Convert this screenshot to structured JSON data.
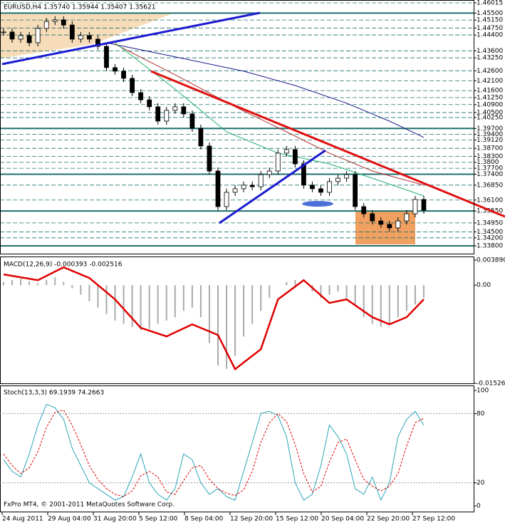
{
  "header": "EURUSD,H4  1.35740 1.35944 1.35407 1.35621",
  "footer": "FxPro MT4, © 2001-2011 MetaQuotes Software Corp.",
  "x_labels": [
    "24 Aug 2011",
    "29 Aug 04:00",
    "31 Aug 20:00",
    "5 Sep 12:00",
    "8 Sep 04:00",
    "12 Sep 20:00",
    "15 Sep 12:00",
    "20 Sep 04:00",
    "22 Sep 20:00",
    "27 Sep 12:00"
  ],
  "price": {
    "ylim": [
      1.3362,
      1.46015
    ],
    "yticks": [
      {
        "value": 1.46015,
        "label": "1.46015"
      },
      {
        "value": 1.455,
        "label": "1.45500"
      },
      {
        "value": 1.4515,
        "label": "1.45150"
      },
      {
        "value": 1.4475,
        "label": "1.44750"
      },
      {
        "value": 1.444,
        "label": "1.44400"
      },
      {
        "value": 1.436,
        "label": "1.43600"
      },
      {
        "value": 1.4325,
        "label": "1.43250"
      },
      {
        "value": 1.426,
        "label": "1.42600"
      },
      {
        "value": 1.421,
        "label": "1.42100"
      },
      {
        "value": 1.416,
        "label": "1.41600"
      },
      {
        "value": 1.4125,
        "label": "1.41250"
      },
      {
        "value": 1.409,
        "label": "1.40900"
      },
      {
        "value": 1.405,
        "label": "1.40500"
      },
      {
        "value": 1.4025,
        "label": "1.40250"
      },
      {
        "value": 1.397,
        "label": "1.39700"
      },
      {
        "value": 1.394,
        "label": "1.39400"
      },
      {
        "value": 1.3912,
        "label": "1.39120"
      },
      {
        "value": 1.387,
        "label": "1.38700"
      },
      {
        "value": 1.383,
        "label": "1.38300"
      },
      {
        "value": 1.38,
        "label": "1.3800"
      },
      {
        "value": 1.377,
        "label": "1.37700"
      },
      {
        "value": 1.374,
        "label": "1.37400"
      },
      {
        "value": 1.3685,
        "label": "1.36850"
      },
      {
        "value": 1.361,
        "label": "1.36100"
      },
      {
        "value": 1.3555,
        "label": "1.35550"
      },
      {
        "value": 1.3495,
        "label": "1.34950"
      },
      {
        "value": 1.345,
        "label": "1.34500"
      },
      {
        "value": 1.342,
        "label": "1.34200"
      },
      {
        "value": 1.338,
        "label": "1.33800"
      }
    ],
    "levels": [
      1.455,
      1.397,
      1.374,
      1.3555,
      1.338
    ],
    "closes": [
      1.4455,
      1.4419,
      1.4437,
      1.4401,
      1.4473,
      1.4508,
      1.4516,
      1.449,
      1.4419,
      1.4437,
      1.4419,
      1.4383,
      1.4276,
      1.4258,
      1.4222,
      1.415,
      1.4114,
      1.4079,
      1.4007,
      1.4061,
      1.4079,
      1.4043,
      1.3971,
      1.3882,
      1.3756,
      1.3577,
      1.3649,
      1.3667,
      1.3685,
      1.3677,
      1.3738,
      1.3756,
      1.3846,
      1.3864,
      1.3792,
      1.3685,
      1.3667,
      1.3649,
      1.3703,
      1.372,
      1.3738,
      1.3577,
      1.3541,
      1.3505,
      1.3488,
      1.347,
      1.3505,
      1.3541,
      1.3613,
      1.3559
    ],
    "ma": [
      {
        "color": "#1a1a8c",
        "x": [
          12,
          20,
          28,
          34,
          40,
          45,
          49
        ],
        "values": [
          1.4401,
          1.433,
          1.4258,
          1.4186,
          1.4097,
          1.4007,
          1.3925
        ]
      },
      {
        "color": "#b03030",
        "x": [
          13,
          20,
          27,
          33,
          38,
          43,
          49
        ],
        "values": [
          1.4394,
          1.424,
          1.4079,
          1.3953,
          1.3846,
          1.3756,
          1.3685
        ]
      },
      {
        "color": "#20b070",
        "x": [
          13,
          20,
          26,
          32,
          38,
          43,
          49
        ],
        "values": [
          1.4401,
          1.4168,
          1.3953,
          1.3846,
          1.3792,
          1.372,
          1.3631
        ]
      }
    ]
  },
  "macd": {
    "label": "MACD(12,26,9) -0.000393 -0.002516",
    "ylim": [
      -0.015261,
      0.00389
    ],
    "yticks": [
      {
        "value": 0.00389,
        "label": "0.003890"
      },
      {
        "value": 0,
        "label": "0.00"
      },
      {
        "value": -0.015261,
        "label": "-0.015261"
      }
    ],
    "histogram": [
      0.0005,
      0.0008,
      0.001,
      0.0006,
      0.0003,
      0.0008,
      0.0012,
      0.0005,
      -0.0005,
      -0.0015,
      -0.0025,
      -0.0035,
      -0.0045,
      -0.0055,
      -0.006,
      -0.0065,
      -0.007,
      -0.0068,
      -0.006,
      -0.0055,
      -0.005,
      -0.004,
      -0.0035,
      -0.005,
      -0.009,
      -0.0125,
      -0.013,
      -0.011,
      -0.008,
      -0.006,
      -0.004,
      -0.002,
      0,
      0.0005,
      0.0008,
      0,
      -0.001,
      -0.002,
      -0.0015,
      -0.001,
      -0.002,
      -0.003,
      -0.005,
      -0.006,
      -0.0065,
      -0.006,
      -0.005,
      -0.004,
      -0.003,
      -0.002
    ],
    "line": {
      "color": "#e00000",
      "x": [
        0,
        4,
        7,
        10,
        13,
        16,
        19,
        22,
        25,
        27,
        30,
        32,
        35,
        38,
        40,
        43,
        45,
        47,
        49
      ],
      "values": [
        0.00166,
        0.00077,
        0.00277,
        0.00111,
        -0.00221,
        -0.00664,
        -0.00797,
        -0.00609,
        -0.00775,
        -0.01306,
        -0.00996,
        -0.00221,
        0.00077,
        -0.00277,
        -0.00221,
        -0.00498,
        -0.00609,
        -0.00498,
        -0.00221
      ]
    }
  },
  "stoch": {
    "label": "Stoch(13,3,3) 69.1939 74.2663",
    "ylim": [
      0,
      100
    ],
    "yticks": [
      0,
      20,
      80,
      100
    ],
    "main": [
      40,
      30,
      25,
      45,
      70,
      88,
      85,
      75,
      50,
      35,
      20,
      15,
      10,
      5,
      8,
      25,
      45,
      20,
      10,
      5,
      15,
      45,
      40,
      20,
      10,
      15,
      8,
      5,
      30,
      55,
      80,
      82,
      78,
      60,
      20,
      5,
      10,
      35,
      70,
      60,
      45,
      15,
      10,
      25,
      5,
      20,
      60,
      75,
      82,
      70
    ],
    "signal": [
      45,
      35,
      28,
      33,
      47,
      68,
      81,
      83,
      70,
      53,
      35,
      23,
      15,
      10,
      8,
      13,
      26,
      30,
      25,
      12,
      10,
      22,
      33,
      35,
      23,
      15,
      11,
      9,
      14,
      30,
      55,
      72,
      80,
      73,
      53,
      28,
      12,
      17,
      38,
      55,
      58,
      40,
      23,
      17,
      13,
      17,
      28,
      52,
      72,
      76
    ]
  }
}
